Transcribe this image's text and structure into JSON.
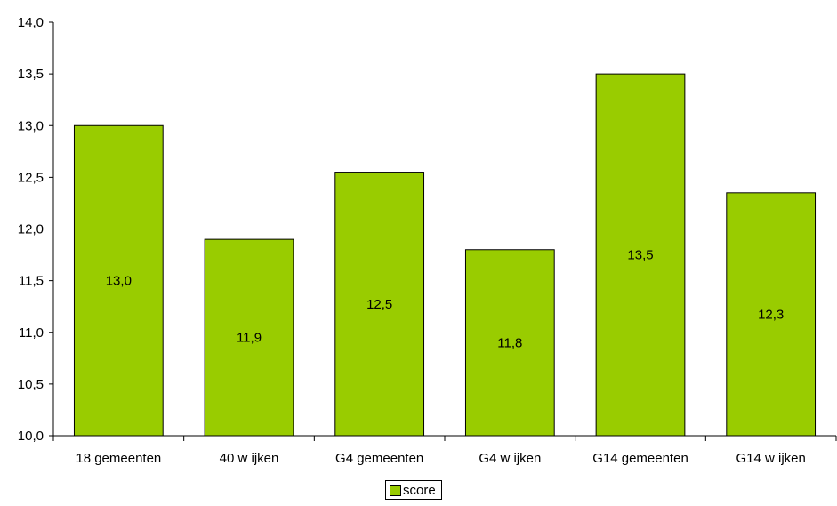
{
  "chart_data": {
    "type": "bar",
    "categories": [
      "18 gemeenten",
      "40 w ijken",
      "G4 gemeenten",
      "G4 w ijken",
      "G14 gemeenten",
      "G14 w ijken"
    ],
    "series": [
      {
        "name": "score",
        "values": [
          13.0,
          11.9,
          12.55,
          11.8,
          13.5,
          12.35
        ],
        "labels": [
          "13,0",
          "11,9",
          "12,5",
          "11,8",
          "13,5",
          "12,3"
        ],
        "color": "#99CC00"
      }
    ],
    "ylim": [
      10.0,
      14.0
    ],
    "yticks": [
      "10,0",
      "10,5",
      "11,0",
      "11,5",
      "12,0",
      "12,5",
      "13,0",
      "13,5",
      "14,0"
    ],
    "grid": false,
    "legend_position": "bottom"
  }
}
